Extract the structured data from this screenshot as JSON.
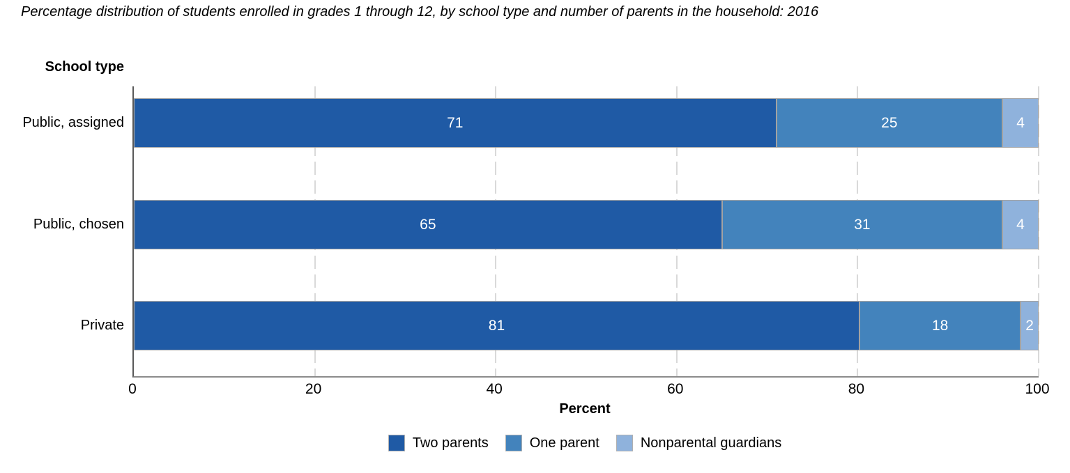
{
  "title": "Percentage distribution of students enrolled in grades 1 through 12, by school type and number of parents in the household: 2016",
  "chart_data": {
    "type": "bar",
    "subtype": "horizontal-stacked",
    "title": "Percentage distribution of students enrolled in grades 1 through 12, by school type and number of parents in the household: 2016",
    "category_axis_title": "School type",
    "categories": [
      "Public, assigned",
      "Public, chosen",
      "Private"
    ],
    "series": [
      {
        "name": "Two parents",
        "color": "#1F5AA5",
        "values": [
          71,
          65,
          81
        ]
      },
      {
        "name": "One parent",
        "color": "#4383BC",
        "values": [
          25,
          31,
          18
        ]
      },
      {
        "name": "Nonparental guardians",
        "color": "#8FB2DC",
        "values": [
          4,
          4,
          2
        ]
      }
    ],
    "xlabel": "Percent",
    "xlim": [
      0,
      100
    ],
    "x_ticks": [
      0,
      20,
      40,
      60,
      80,
      100
    ],
    "gridlines": [
      20,
      40,
      60,
      80,
      100
    ],
    "grid_style": "dashed",
    "legend_position": "bottom",
    "bar_value_labels_color": "#ffffff",
    "gridline_color": "#d9d9d9",
    "segment_border_color": "#a3a3a3"
  }
}
